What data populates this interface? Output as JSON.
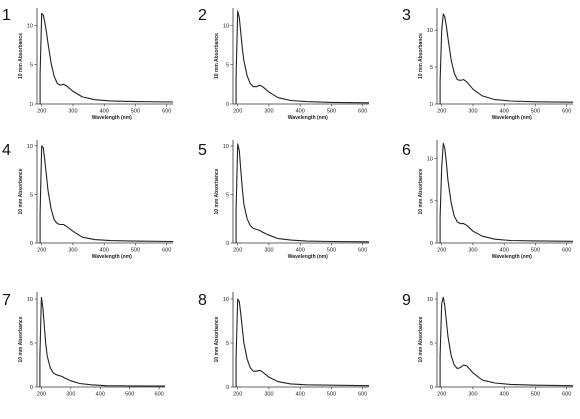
{
  "chart_data": [
    {
      "type": "line",
      "panel_label": "1",
      "xlabel": "Wavelength (nm)",
      "ylabel": "10 mm Absorbance",
      "xlim": [
        185,
        620
      ],
      "ylim": [
        0,
        12.2
      ],
      "xticks": [
        200,
        300,
        400,
        500,
        600
      ],
      "yticks": [
        0,
        5,
        10
      ],
      "series": [
        {
          "x": [
            195,
            200,
            205,
            210,
            215,
            220,
            230,
            240,
            250,
            260,
            270,
            280,
            300,
            330,
            370,
            420,
            500,
            620
          ],
          "y": [
            3.8,
            11.5,
            11.3,
            10.4,
            9.2,
            7.8,
            5.2,
            3.5,
            2.6,
            2.4,
            2.5,
            2.3,
            1.6,
            0.9,
            0.55,
            0.4,
            0.3,
            0.25
          ]
        }
      ]
    },
    {
      "type": "line",
      "panel_label": "2",
      "xlabel": "Wavelength (nm)",
      "ylabel": "10 mm Absorbance",
      "xlim": [
        185,
        620
      ],
      "ylim": [
        0,
        12.2
      ],
      "xticks": [
        200,
        300,
        400,
        500,
        600
      ],
      "yticks": [
        0,
        5,
        10
      ],
      "series": [
        {
          "x": [
            195,
            200,
            205,
            210,
            215,
            220,
            230,
            240,
            250,
            260,
            270,
            280,
            300,
            330,
            370,
            420,
            500,
            620
          ],
          "y": [
            3.5,
            11.8,
            11.0,
            9.0,
            7.0,
            5.5,
            3.6,
            2.6,
            2.2,
            2.2,
            2.4,
            2.2,
            1.5,
            0.8,
            0.45,
            0.3,
            0.2,
            0.15
          ]
        }
      ]
    },
    {
      "type": "line",
      "panel_label": "3",
      "xlabel": "Wavelength (nm)",
      "ylabel": "10 mm Absorbance",
      "xlim": [
        185,
        620
      ],
      "ylim": [
        0,
        13
      ],
      "xticks": [
        200,
        300,
        400,
        500,
        600
      ],
      "yticks": [
        0,
        5,
        10
      ],
      "series": [
        {
          "x": [
            195,
            200,
            205,
            210,
            215,
            220,
            230,
            240,
            250,
            260,
            270,
            280,
            300,
            330,
            370,
            420,
            500,
            620
          ],
          "y": [
            3.0,
            10.0,
            12.2,
            11.8,
            10.5,
            9.0,
            6.0,
            4.2,
            3.3,
            3.2,
            3.3,
            3.0,
            2.0,
            1.1,
            0.6,
            0.4,
            0.3,
            0.25
          ]
        }
      ]
    },
    {
      "type": "line",
      "panel_label": "4",
      "xlabel": "Wavelength (nm)",
      "ylabel": "10 mm Absorbance",
      "xlim": [
        185,
        620
      ],
      "ylim": [
        0,
        10.6
      ],
      "xticks": [
        200,
        300,
        400,
        500,
        600
      ],
      "yticks": [
        0,
        5,
        10
      ],
      "series": [
        {
          "x": [
            195,
            200,
            205,
            210,
            215,
            220,
            230,
            240,
            250,
            260,
            270,
            280,
            300,
            330,
            370,
            420,
            500,
            620
          ],
          "y": [
            3.0,
            10.0,
            9.8,
            8.5,
            7.0,
            5.5,
            3.5,
            2.4,
            2.0,
            1.9,
            1.9,
            1.7,
            1.2,
            0.6,
            0.35,
            0.25,
            0.2,
            0.15
          ]
        }
      ]
    },
    {
      "type": "line",
      "panel_label": "5",
      "xlabel": "Wavelength (nm)",
      "ylabel": "10 mm Absorbance",
      "xlim": [
        185,
        620
      ],
      "ylim": [
        0,
        10.6
      ],
      "xticks": [
        200,
        300,
        400,
        500,
        600
      ],
      "yticks": [
        0,
        5,
        10
      ],
      "series": [
        {
          "x": [
            195,
            200,
            205,
            210,
            215,
            220,
            230,
            240,
            250,
            260,
            270,
            280,
            300,
            330,
            370,
            420,
            500,
            620
          ],
          "y": [
            3.5,
            10.2,
            9.5,
            7.5,
            5.5,
            4.0,
            2.5,
            1.8,
            1.5,
            1.4,
            1.3,
            1.1,
            0.8,
            0.45,
            0.3,
            0.2,
            0.15,
            0.12
          ]
        }
      ]
    },
    {
      "type": "line",
      "panel_label": "6",
      "xlabel": "Wavelength (nm)",
      "ylabel": "10 mm Absorbance",
      "xlim": [
        185,
        620
      ],
      "ylim": [
        0,
        12.2
      ],
      "xticks": [
        200,
        300,
        400,
        500,
        600
      ],
      "yticks": [
        0,
        5,
        10
      ],
      "series": [
        {
          "x": [
            195,
            200,
            205,
            210,
            215,
            220,
            230,
            240,
            250,
            260,
            270,
            280,
            300,
            330,
            370,
            420,
            500,
            620
          ],
          "y": [
            3.0,
            9.0,
            11.8,
            11.2,
            9.5,
            7.5,
            4.8,
            3.2,
            2.5,
            2.3,
            2.3,
            2.1,
            1.4,
            0.8,
            0.45,
            0.3,
            0.25,
            0.2
          ]
        }
      ]
    },
    {
      "type": "line",
      "panel_label": "7",
      "xlabel": "",
      "ylabel": "10 mm Absorbance",
      "xlim": [
        185,
        620
      ],
      "ylim": [
        0,
        10.8
      ],
      "xticks": [
        200,
        300,
        400,
        500,
        600
      ],
      "yticks": [
        0,
        5,
        10
      ],
      "series": [
        {
          "x": [
            195,
            200,
            205,
            210,
            215,
            220,
            230,
            240,
            250,
            260,
            270,
            280,
            300,
            330,
            370,
            420,
            500,
            620
          ],
          "y": [
            3.5,
            10.2,
            9.0,
            6.8,
            4.8,
            3.5,
            2.2,
            1.6,
            1.4,
            1.3,
            1.2,
            1.0,
            0.7,
            0.4,
            0.25,
            0.15,
            0.12,
            0.1
          ]
        }
      ]
    },
    {
      "type": "line",
      "panel_label": "8",
      "xlabel": "",
      "ylabel": "10 mm Absorbance",
      "xlim": [
        185,
        620
      ],
      "ylim": [
        0,
        10.8
      ],
      "xticks": [
        200,
        300,
        400,
        500,
        600
      ],
      "yticks": [
        0,
        5,
        10
      ],
      "series": [
        {
          "x": [
            195,
            200,
            205,
            210,
            215,
            220,
            230,
            240,
            250,
            260,
            270,
            280,
            300,
            330,
            370,
            420,
            500,
            620
          ],
          "y": [
            3.5,
            10.0,
            9.7,
            8.3,
            6.6,
            5.0,
            3.2,
            2.2,
            1.8,
            1.8,
            1.9,
            1.7,
            1.1,
            0.6,
            0.35,
            0.25,
            0.2,
            0.15
          ]
        }
      ]
    },
    {
      "type": "line",
      "panel_label": "9",
      "xlabel": "",
      "ylabel": "10 mm Absorbance",
      "xlim": [
        185,
        620
      ],
      "ylim": [
        0,
        10.8
      ],
      "xticks": [
        200,
        300,
        400,
        500,
        600
      ],
      "yticks": [
        0,
        5,
        10
      ],
      "series": [
        {
          "x": [
            195,
            200,
            205,
            210,
            215,
            220,
            230,
            240,
            250,
            260,
            270,
            280,
            300,
            330,
            370,
            420,
            500,
            620
          ],
          "y": [
            3.5,
            9.5,
            10.2,
            9.2,
            7.5,
            5.8,
            3.6,
            2.5,
            2.1,
            2.2,
            2.5,
            2.4,
            1.6,
            0.8,
            0.45,
            0.3,
            0.2,
            0.15
          ]
        }
      ]
    }
  ]
}
